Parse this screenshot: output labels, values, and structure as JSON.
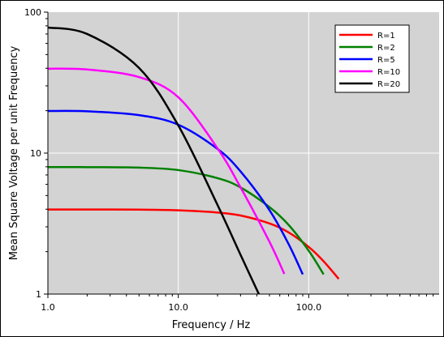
{
  "chart_data": {
    "type": "line",
    "title": "",
    "xlabel": "Frequency / Hz",
    "ylabel": "Mean Square Voltage per unit Frequency",
    "xscale": "log",
    "yscale": "log",
    "xlim": [
      1,
      1000
    ],
    "ylim": [
      1,
      100
    ],
    "xticks": [
      1,
      10,
      100
    ],
    "xtick_labels": [
      "1.0",
      "10.0",
      "100.0"
    ],
    "yticks": [
      1,
      10,
      100
    ],
    "ytick_labels": [
      "1",
      "10",
      "100"
    ],
    "grid": true,
    "background": "#d3d3d3",
    "legend": "top-right",
    "series": [
      {
        "name": "R=1",
        "color": "#ff0000",
        "x": [
          1,
          2,
          5,
          10,
          20,
          30,
          50,
          70,
          100,
          130,
          170
        ],
        "y": [
          3.98,
          3.98,
          3.97,
          3.93,
          3.79,
          3.61,
          3.17,
          2.74,
          2.16,
          1.71,
          1.28
        ]
      },
      {
        "name": "R=2",
        "color": "#008000",
        "x": [
          1,
          2,
          5,
          10,
          20,
          30,
          50,
          70,
          100,
          130
        ],
        "y": [
          7.96,
          7.95,
          7.89,
          7.58,
          6.64,
          5.71,
          4.14,
          3.1,
          2.03,
          1.38
        ]
      },
      {
        "name": "R=5",
        "color": "#0000ff",
        "x": [
          1,
          2,
          5,
          10,
          20,
          30,
          50,
          70,
          90
        ],
        "y": [
          19.9,
          19.8,
          18.6,
          15.9,
          10.7,
          7.42,
          3.94,
          2.27,
          1.38
        ]
      },
      {
        "name": "R=10",
        "color": "#ff00ff",
        "x": [
          1,
          2,
          5,
          10,
          20,
          30,
          50,
          65
        ],
        "y": [
          39.7,
          39.2,
          34.6,
          24.9,
          10.8,
          5.72,
          2.35,
          1.39
        ]
      },
      {
        "name": "R=20",
        "color": "#000000",
        "x": [
          1,
          2,
          5,
          10,
          20,
          30,
          45
        ],
        "y": [
          77.8,
          70.0,
          40.2,
          15.7,
          4.28,
          1.9,
          0.85
        ]
      }
    ]
  }
}
